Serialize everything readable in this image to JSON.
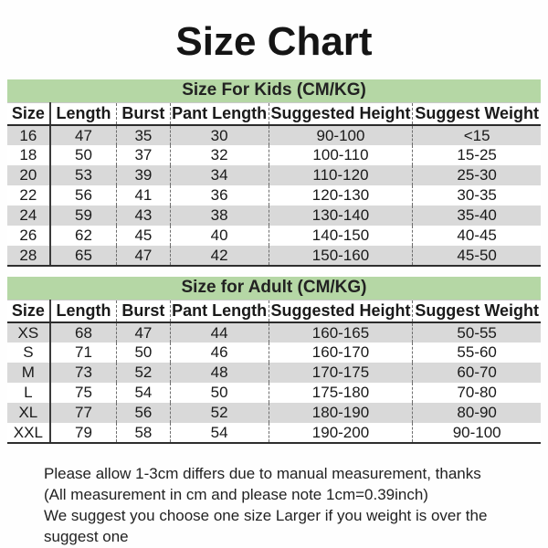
{
  "page": {
    "title": "Size Chart"
  },
  "colors": {
    "band_green": "#b5d7a5",
    "stripe_gray": "#d9d9d9",
    "text": "#1a1a1a"
  },
  "columns": [
    "Size",
    "Length",
    "Burst",
    "Pant Length",
    "Suggested Height",
    "Suggest Weight"
  ],
  "kids_table": {
    "title": "Size For Kids (CM/KG)",
    "rows": [
      [
        "16",
        "47",
        "35",
        "30",
        "90-100",
        "<15"
      ],
      [
        "18",
        "50",
        "37",
        "32",
        "100-110",
        "15-25"
      ],
      [
        "20",
        "53",
        "39",
        "34",
        "110-120",
        "25-30"
      ],
      [
        "22",
        "56",
        "41",
        "36",
        "120-130",
        "30-35"
      ],
      [
        "24",
        "59",
        "43",
        "38",
        "130-140",
        "35-40"
      ],
      [
        "26",
        "62",
        "45",
        "40",
        "140-150",
        "40-45"
      ],
      [
        "28",
        "65",
        "47",
        "42",
        "150-160",
        "45-50"
      ]
    ]
  },
  "adult_table": {
    "title": "Size for Adult (CM/KG)",
    "rows": [
      [
        "XS",
        "68",
        "47",
        "44",
        "160-165",
        "50-55"
      ],
      [
        "S",
        "71",
        "50",
        "46",
        "160-170",
        "55-60"
      ],
      [
        "M",
        "73",
        "52",
        "48",
        "170-175",
        "60-70"
      ],
      [
        "L",
        "75",
        "54",
        "50",
        "175-180",
        "70-80"
      ],
      [
        "XL",
        "77",
        "56",
        "52",
        "180-190",
        "80-90"
      ],
      [
        "XXL",
        "79",
        "58",
        "54",
        "190-200",
        "90-100"
      ]
    ]
  },
  "footer": {
    "lines": [
      "Please allow 1-3cm differs due to manual measurement, thanks",
      "(All measurement in cm and please note 1cm=0.39inch)",
      "We suggest you choose one size Larger if you weight is over the suggest one"
    ]
  }
}
